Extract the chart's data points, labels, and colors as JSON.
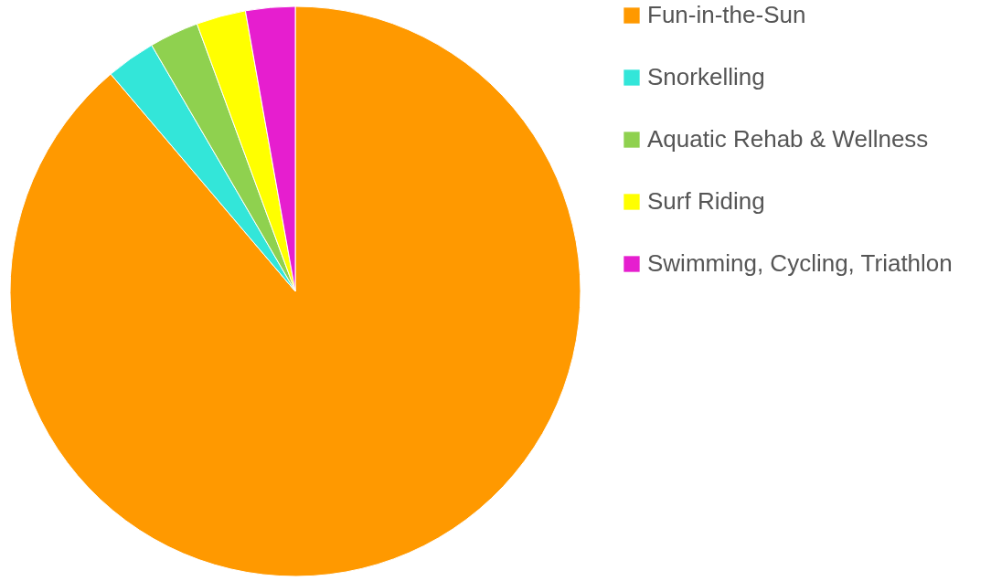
{
  "chart_data": {
    "type": "pie",
    "categories": [
      "Fun-in-the-Sun",
      "Snorkelling",
      "Aquatic Rehab & Wellness",
      "Surf Riding",
      "Swimming, Cycling, Triathlon"
    ],
    "values": [
      88.8,
      2.8,
      2.8,
      2.8,
      2.8
    ],
    "colors": [
      "#ff9900",
      "#33e6d9",
      "#8fd14f",
      "#ffff00",
      "#e61ecf"
    ],
    "legend": "right"
  }
}
